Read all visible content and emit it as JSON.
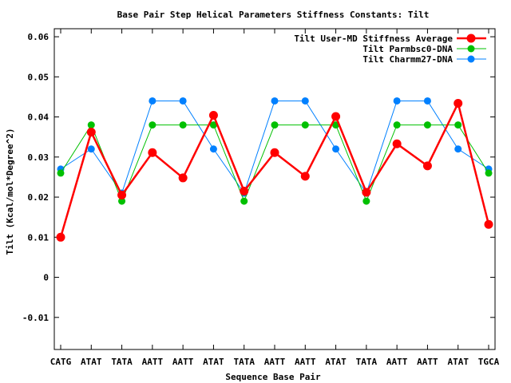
{
  "chart_data": {
    "type": "line",
    "title": "Base Pair Step Helical Parameters Stiffness Constants: Tilt",
    "xlabel": "Sequence Base Pair",
    "ylabel": "Tilt (Kcal/mol*Degree^2)",
    "categories": [
      "CATG",
      "ATAT",
      "TATA",
      "AATT",
      "AATT",
      "ATAT",
      "TATA",
      "AATT",
      "AATT",
      "ATAT",
      "TATA",
      "AATT",
      "AATT",
      "ATAT",
      "TGCA"
    ],
    "ylim": [
      -0.018,
      0.062
    ],
    "yticks": [
      -0.01,
      0,
      0.01,
      0.02,
      0.03,
      0.04,
      0.05,
      0.06
    ],
    "ytick_labels": [
      "-0.01",
      "0",
      "0.01",
      "0.02",
      "0.03",
      "0.04",
      "0.05",
      "0.06"
    ],
    "grid": false,
    "legend_position": "top-right",
    "series": [
      {
        "name": "Tilt User-MD Stiffness Average",
        "color": "#ff0000",
        "values": [
          0.01,
          0.0362,
          0.0205,
          0.0311,
          0.0248,
          0.0404,
          0.0215,
          0.0311,
          0.0252,
          0.0401,
          0.0212,
          0.0333,
          0.0278,
          0.0434,
          0.0132
        ]
      },
      {
        "name": "Tilt Parmbsc0-DNA",
        "color": "#00c000",
        "values": [
          0.026,
          0.038,
          0.019,
          0.038,
          0.038,
          0.038,
          0.019,
          0.038,
          0.038,
          0.038,
          0.019,
          0.038,
          0.038,
          0.038,
          0.026
        ]
      },
      {
        "name": "Tilt Charmm27-DNA",
        "color": "#0080ff",
        "values": [
          0.027,
          0.032,
          0.021,
          0.044,
          0.044,
          0.032,
          0.021,
          0.044,
          0.044,
          0.032,
          0.021,
          0.044,
          0.044,
          0.032,
          0.027
        ]
      }
    ]
  }
}
